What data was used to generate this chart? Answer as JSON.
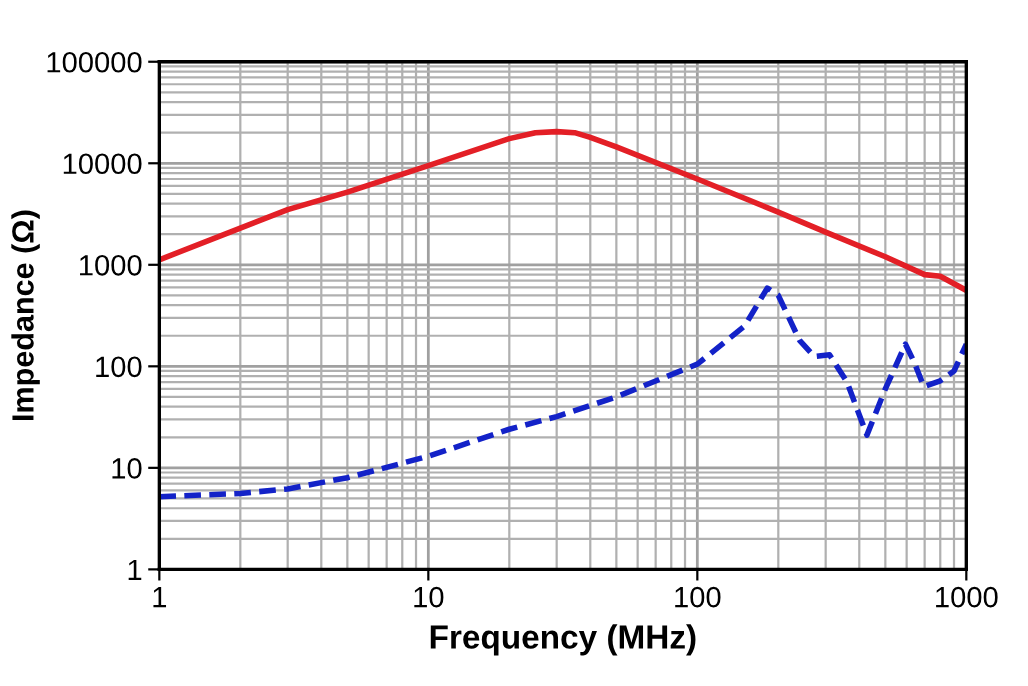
{
  "chart_data": {
    "type": "line",
    "xlabel": "Frequency (MHz)",
    "ylabel": "Impedance (Ω)",
    "log": "xy",
    "grid": true,
    "xlim": [
      1,
      1000
    ],
    "xticks": [
      1,
      10,
      100,
      1000
    ],
    "ylim": [
      1,
      100000
    ],
    "yticks": [
      1,
      10,
      100,
      1000,
      10000,
      100000
    ],
    "series": [
      {
        "color": "#e31f26",
        "line_style": "solid",
        "x": [
          1,
          2,
          3,
          5,
          10,
          20,
          25,
          30,
          35,
          40,
          50,
          100,
          200,
          300,
          500,
          700,
          800,
          1000
        ],
        "values": [
          1120,
          2300,
          3500,
          5200,
          9500,
          17500,
          20000,
          20500,
          20000,
          18000,
          14500,
          7000,
          3300,
          2100,
          1200,
          800,
          770,
          560
        ]
      },
      {
        "color": "#1322c8",
        "line_style": "dashed",
        "x": [
          1,
          2,
          3,
          5,
          10,
          20,
          30,
          50,
          100,
          150,
          182,
          200,
          240,
          272,
          310,
          360,
          427,
          500,
          594,
          640,
          695,
          800,
          900,
          1000
        ],
        "values": [
          5.2,
          5.6,
          6.2,
          8,
          13,
          24,
          32,
          50,
          105,
          250,
          590,
          500,
          180,
          125,
          130,
          70,
          21,
          60,
          165,
          110,
          63,
          72,
          90,
          165
        ]
      }
    ]
  }
}
